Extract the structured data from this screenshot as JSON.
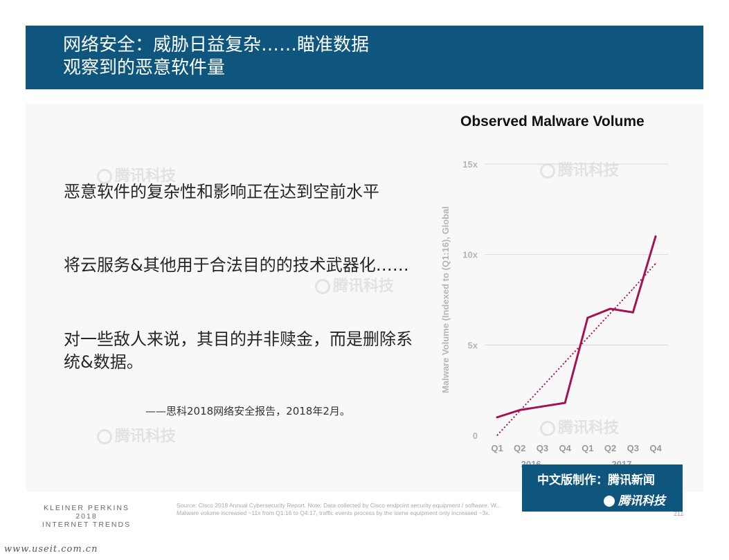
{
  "header": {
    "title_line1": "网络安全：威胁日益复杂……瞄准数据",
    "title_line2": "观察到的恶意软件量"
  },
  "body": {
    "points": [
      "恶意软件的复杂性和影响正在达到空前水平",
      "将云服务&其他用于合法目的的技术武器化……",
      "对一些敌人来说，其目的并非赎金，而是删除系统&数据。"
    ],
    "citation": "——思科2018网络安全报告，2018年2月。"
  },
  "chart_data": {
    "type": "line",
    "title": "Observed Malware Volume",
    "ylabel": "Malware Volume (Indexed to (Q1:16), Global",
    "xlabel": "",
    "categories": [
      "Q1",
      "Q2",
      "Q3",
      "Q4",
      "Q1",
      "Q2",
      "Q3",
      "Q4"
    ],
    "year_groups": [
      {
        "label": "2016",
        "span": [
          0,
          3
        ]
      },
      {
        "label": "2017",
        "span": [
          4,
          7
        ]
      }
    ],
    "y_ticks": [
      "0",
      "5x",
      "10x",
      "15x"
    ],
    "y_tick_values": [
      0,
      5,
      10,
      15
    ],
    "ylim": [
      0,
      15
    ],
    "grid": true,
    "series": [
      {
        "values": [
          1.0,
          1.4,
          1.6,
          1.8,
          6.5,
          7.0,
          6.8,
          11.0
        ],
        "color": "#a4124f",
        "style": "solid"
      },
      {
        "values": [
          0.0,
          1.35,
          2.7,
          4.05,
          5.4,
          6.75,
          8.1,
          9.5
        ],
        "color": "#a4124f",
        "style": "dotted"
      }
    ]
  },
  "footer": {
    "brand_lines": [
      "KLEINER PERKINS",
      "2018",
      "INTERNET TRENDS"
    ],
    "source_line1": "Source: Cisco 2018 Annual Cybersecurity Report. Note: Data collected by Cisco endpoint security equipment / software. W...",
    "source_line2": "Malware volume increased ~11x from Q1:16 to Q4:17, traffic events process by the same equipment only increased ~3x.",
    "page_number": "211",
    "url": "www.useit.com.cn"
  },
  "badge": {
    "line1": "中文版制作：腾讯新闻",
    "line2": "腾讯科技"
  },
  "watermark": "腾讯科技",
  "colors": {
    "banner": "#0e567e",
    "series": "#a4124f",
    "grid": "#d9d9d9"
  }
}
